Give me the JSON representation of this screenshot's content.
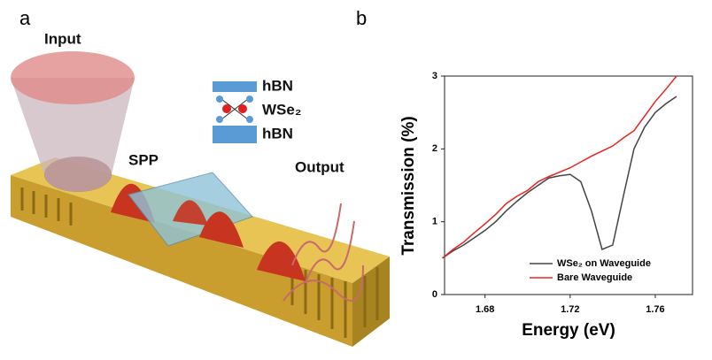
{
  "panel_a": {
    "label": "a",
    "input": "Input",
    "spp": "SPP",
    "output": "Output",
    "hbn_top": "hBN",
    "wse2": "WSe₂",
    "hbn_bottom": "hBN"
  },
  "panel_b": {
    "label": "b"
  },
  "chart_data": {
    "type": "line",
    "x_label": "Energy (eV)",
    "y_label": "Transmission (%)",
    "x": [
      1.66,
      1.665,
      1.67,
      1.675,
      1.68,
      1.685,
      1.69,
      1.695,
      1.7,
      1.705,
      1.71,
      1.715,
      1.72,
      1.725,
      1.73,
      1.735,
      1.74,
      1.745,
      1.75,
      1.755,
      1.76,
      1.765,
      1.77
    ],
    "series": [
      {
        "name": "WSe₂ on Waveguide",
        "color": "#444444",
        "values": [
          0.5,
          0.6,
          0.68,
          0.78,
          0.88,
          1.0,
          1.15,
          1.28,
          1.4,
          1.5,
          1.6,
          1.63,
          1.65,
          1.55,
          1.15,
          0.62,
          0.68,
          1.35,
          2.0,
          2.3,
          2.5,
          2.62,
          2.72
        ]
      },
      {
        "name": "Bare Waveguide",
        "color": "#e8231f",
        "values": [
          0.5,
          0.62,
          0.72,
          0.85,
          0.97,
          1.1,
          1.25,
          1.35,
          1.43,
          1.55,
          1.62,
          1.68,
          1.74,
          1.82,
          1.9,
          1.97,
          2.04,
          2.15,
          2.25,
          2.45,
          2.65,
          2.82,
          3.0
        ]
      }
    ],
    "xlim": [
      1.661,
      1.7775
    ],
    "xticks": [
      1.68,
      1.72,
      1.76
    ],
    "ylim": [
      0,
      3
    ],
    "yticks": [
      0,
      1,
      2,
      3
    ],
    "legend": "lower right"
  }
}
